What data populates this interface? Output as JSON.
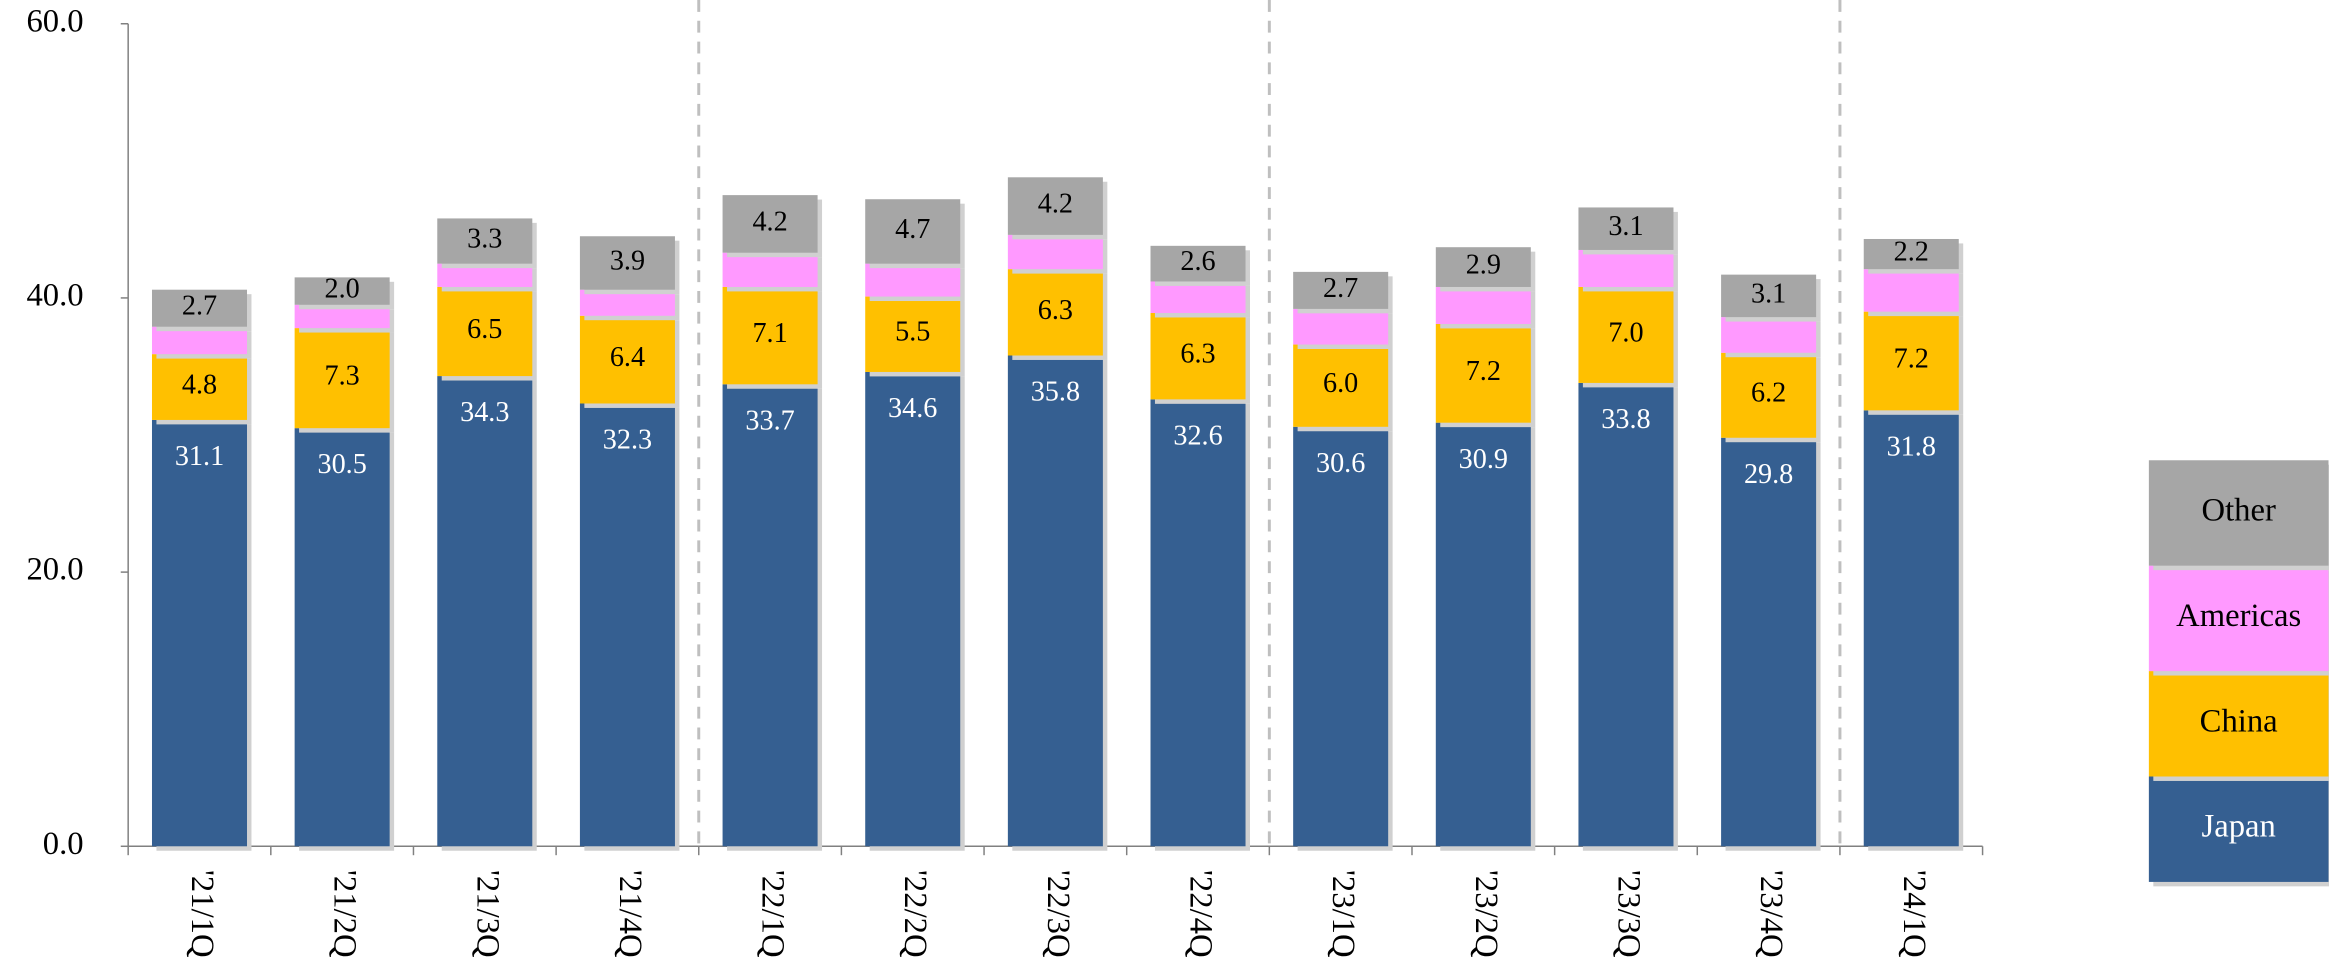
{
  "chart_data": {
    "type": "stacked_bar",
    "categories": [
      "'21/1Q",
      "'21/2Q",
      "'21/3Q",
      "'21/4Q",
      "'22/1Q",
      "'22/2Q",
      "'22/3Q",
      "'22/4Q",
      "'23/1Q",
      "'23/2Q",
      "'23/3Q",
      "'23/4Q",
      "'24/1Q"
    ],
    "series": [
      {
        "name": "Japan",
        "color": "#355f91",
        "values": [
          31.1,
          30.5,
          34.3,
          32.3,
          33.7,
          34.6,
          35.8,
          32.6,
          30.6,
          30.9,
          33.8,
          29.8,
          31.8
        ],
        "value_labels": [
          "31.1",
          "30.5",
          "34.3",
          "32.3",
          "33.7",
          "34.6",
          "35.8",
          "32.6",
          "30.6",
          "30.9",
          "33.8",
          "29.8",
          "31.8"
        ]
      },
      {
        "name": "China",
        "color": "#ffc000",
        "values": [
          4.8,
          7.3,
          6.5,
          6.4,
          7.1,
          5.5,
          6.3,
          6.3,
          6.0,
          7.2,
          7.0,
          6.2,
          7.2
        ],
        "value_labels": [
          "4.8",
          "7.3",
          "6.5",
          "6.4",
          "7.1",
          "5.5",
          "6.3",
          "6.3",
          "6.0",
          "7.2",
          "7.0",
          "6.2",
          "7.2"
        ]
      },
      {
        "name": "Americas",
        "color": "#ff99ff",
        "values": [
          2.0,
          1.7,
          1.7,
          1.9,
          2.5,
          2.4,
          2.5,
          2.3,
          2.6,
          2.7,
          2.7,
          2.6,
          3.1
        ]
      },
      {
        "name": "Other",
        "color": "#a6a6a6",
        "values": [
          2.7,
          2.0,
          3.3,
          3.9,
          4.2,
          4.7,
          4.2,
          2.6,
          2.7,
          2.9,
          3.1,
          3.1,
          2.2
        ],
        "value_labels": [
          "2.7",
          "2.0",
          "3.3",
          "3.9",
          "4.2",
          "4.7",
          "4.2",
          "2.6",
          "2.7",
          "2.9",
          "3.1",
          "3.1",
          "2.2"
        ]
      }
    ],
    "ylim": [
      0,
      60
    ],
    "yticks": [
      {
        "value": 0,
        "label": "0.0"
      },
      {
        "value": 20,
        "label": "20.0"
      },
      {
        "value": 40,
        "label": "40.0"
      },
      {
        "value": 60,
        "label": "60.0"
      }
    ],
    "legend": "right"
  }
}
